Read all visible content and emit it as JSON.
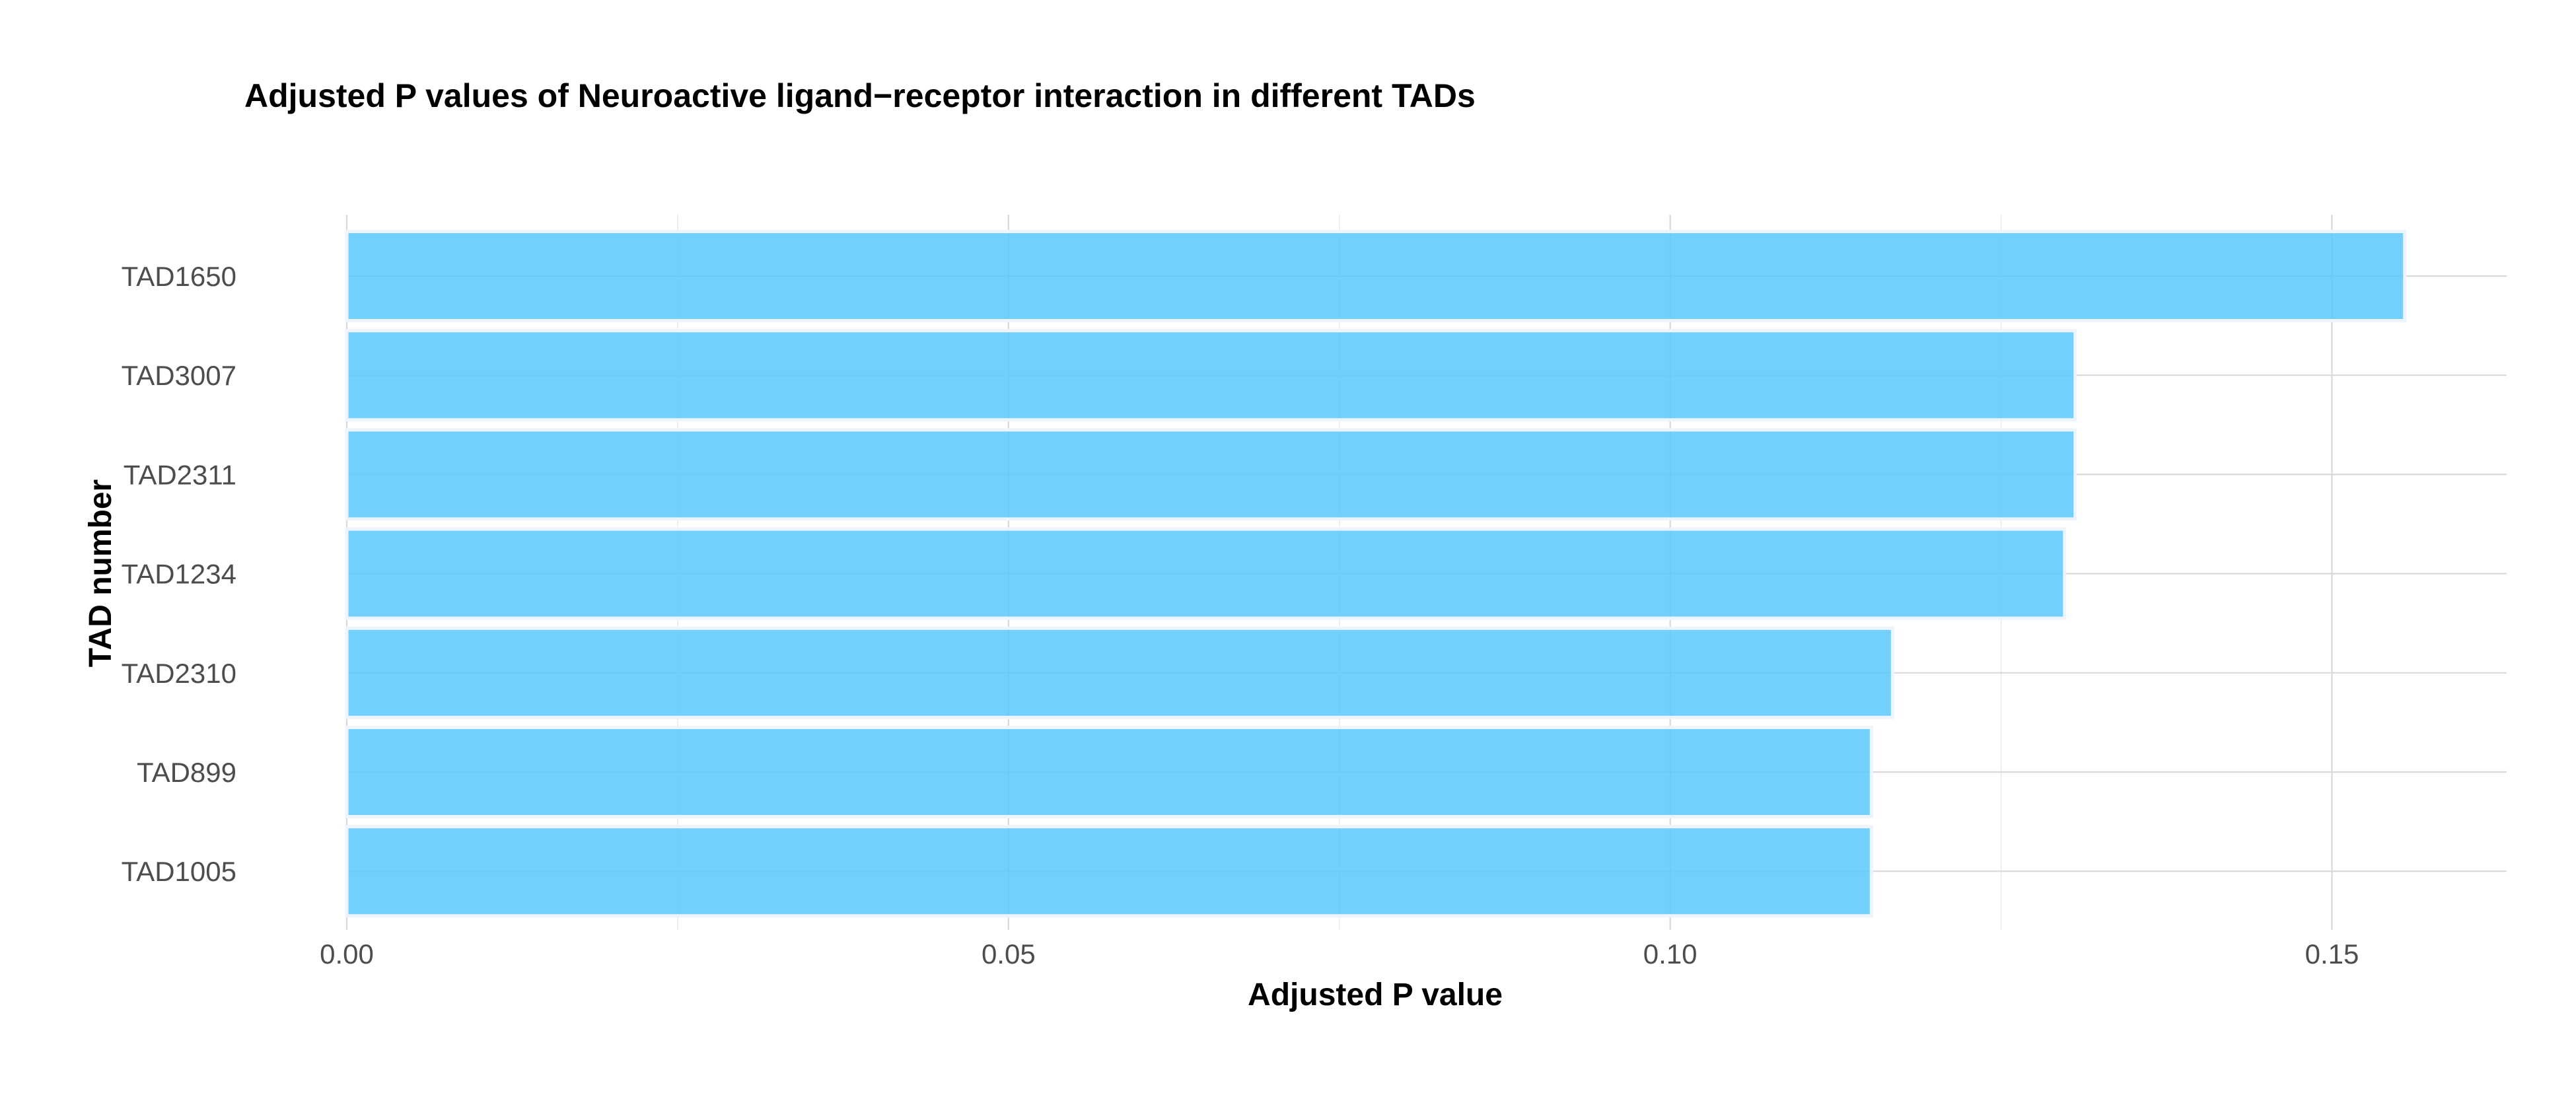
{
  "chart_data": {
    "type": "bar",
    "orientation": "horizontal",
    "title": "Adjusted P values of Neuroactive ligand−receptor interaction in different TADs",
    "xlabel": "Adjusted P value",
    "ylabel": "TAD number",
    "categories": [
      "TAD1650",
      "TAD3007",
      "TAD2311",
      "TAD1234",
      "TAD2310",
      "TAD899",
      "TAD1005"
    ],
    "values": [
      0.1555,
      0.1306,
      0.1306,
      0.1298,
      0.1168,
      0.1152,
      0.1152
    ],
    "xlim": [
      0,
      0.1632
    ],
    "x_ticks": [
      0.0,
      0.05,
      0.1,
      0.15
    ],
    "x_tick_labels": [
      "0.00",
      "0.05",
      "0.10",
      "0.15"
    ],
    "x_minor_ticks": [
      0.025,
      0.075,
      0.125
    ],
    "grid": true,
    "legend": "none",
    "colors": {
      "bar_fill": "#5BC8FC",
      "bar_outline": "#EEF4FB",
      "major_grid": "#D9D9D9",
      "minor_grid": "#EBEBEB",
      "tick_text": "#4D4D4D",
      "title_text": "#000000"
    }
  }
}
